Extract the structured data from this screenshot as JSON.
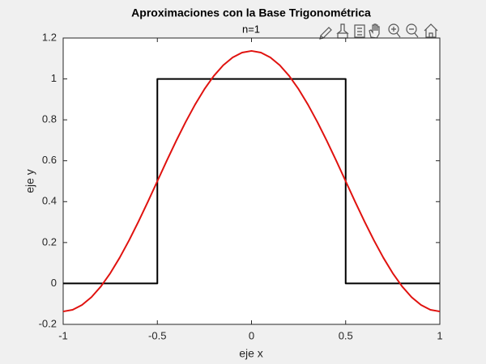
{
  "chart_data": {
    "type": "line",
    "title": "Aproximaciones con la Base Trigonométrica",
    "subtitle": "n=1",
    "x_label": "eje x",
    "y_label": "eje y",
    "xlim": [
      -1,
      1
    ],
    "ylim": [
      -0.2,
      1.2
    ],
    "xticks": [
      -1,
      -0.5,
      0,
      0.5,
      1
    ],
    "yticks": [
      -0.2,
      0,
      0.2,
      0.4,
      0.6,
      0.8,
      1,
      1.2
    ],
    "grid": false,
    "series": [
      {
        "color": "#000000",
        "x": [
          -1,
          -0.5,
          -0.5,
          0.5,
          0.5,
          1
        ],
        "values": [
          0,
          0,
          1,
          1,
          0,
          0
        ]
      },
      {
        "color": "#e0120f",
        "x": [
          -1,
          -0.95,
          -0.9,
          -0.85,
          -0.8,
          -0.75,
          -0.7,
          -0.65,
          -0.6,
          -0.55,
          -0.5,
          -0.45,
          -0.4,
          -0.35,
          -0.3,
          -0.25,
          -0.2,
          -0.15,
          -0.1,
          -0.05,
          0,
          0.05,
          0.1,
          0.15,
          0.2,
          0.25,
          0.3,
          0.35,
          0.4,
          0.45,
          0.5,
          0.55,
          0.6,
          0.65,
          0.7,
          0.75,
          0.8,
          0.85,
          0.9,
          0.95,
          1
        ],
        "values": [
          -0.137,
          -0.129,
          -0.105,
          -0.067,
          -0.015,
          0.05,
          0.126,
          0.211,
          0.303,
          0.4,
          0.5,
          0.6,
          0.697,
          0.789,
          0.874,
          0.95,
          1.015,
          1.067,
          1.105,
          1.129,
          1.137,
          1.129,
          1.105,
          1.067,
          1.015,
          0.95,
          0.874,
          0.789,
          0.697,
          0.6,
          0.5,
          0.4,
          0.303,
          0.211,
          0.126,
          0.05,
          -0.015,
          -0.067,
          -0.105,
          -0.129,
          -0.137
        ]
      }
    ]
  }
}
